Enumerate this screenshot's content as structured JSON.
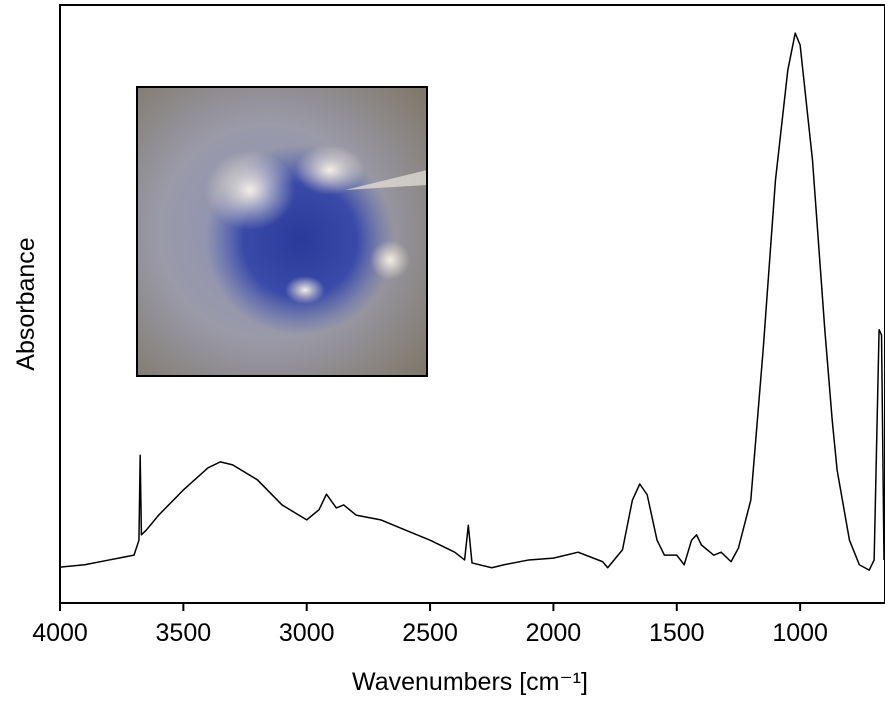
{
  "chart_data": {
    "type": "line",
    "x_label": "Wavenumbers [cm⁻¹]",
    "y_label": "Absorbance",
    "x": [
      4000,
      3900,
      3800,
      3700,
      3680,
      3675,
      3670,
      3650,
      3600,
      3500,
      3400,
      3350,
      3300,
      3200,
      3100,
      3000,
      2950,
      2920,
      2880,
      2850,
      2800,
      2700,
      2600,
      2500,
      2400,
      2360,
      2345,
      2330,
      2250,
      2200,
      2100,
      2000,
      1900,
      1800,
      1780,
      1720,
      1680,
      1650,
      1620,
      1580,
      1550,
      1500,
      1470,
      1440,
      1420,
      1400,
      1350,
      1320,
      1280,
      1250,
      1200,
      1150,
      1100,
      1050,
      1020,
      1000,
      950,
      900,
      870,
      850,
      800,
      760,
      720,
      700,
      680,
      670,
      660
    ],
    "series": [
      {
        "color": "#000000",
        "values": [
          0.06,
          0.064,
          0.072,
          0.08,
          0.105,
          0.247,
          0.114,
          0.122,
          0.147,
          0.189,
          0.226,
          0.236,
          0.231,
          0.206,
          0.164,
          0.139,
          0.156,
          0.182,
          0.159,
          0.164,
          0.147,
          0.139,
          0.122,
          0.105,
          0.085,
          0.072,
          0.13,
          0.067,
          0.059,
          0.064,
          0.072,
          0.075,
          0.085,
          0.069,
          0.059,
          0.089,
          0.172,
          0.199,
          0.181,
          0.105,
          0.08,
          0.08,
          0.064,
          0.105,
          0.114,
          0.097,
          0.08,
          0.085,
          0.069,
          0.092,
          0.172,
          0.423,
          0.707,
          0.891,
          0.953,
          0.933,
          0.741,
          0.457,
          0.306,
          0.222,
          0.105,
          0.064,
          0.055,
          0.072,
          0.457,
          0.448,
          0.072
        ]
      }
    ],
    "xlim": [
      4000,
      656
    ],
    "ylim": [
      0,
      1
    ],
    "xticks": [
      4000,
      3500,
      3000,
      2500,
      2000,
      1500,
      1000
    ]
  }
}
